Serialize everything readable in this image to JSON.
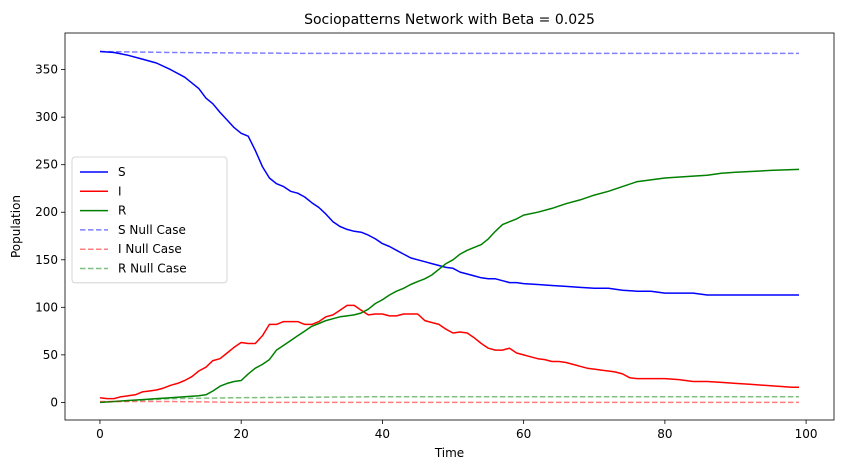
{
  "chart_data": {
    "type": "line",
    "title": "Sociopatterns Network with Beta = 0.025",
    "xlabel": "Time",
    "ylabel": "Population",
    "xlim": [
      -4.95,
      103.95
    ],
    "ylim": [
      -18.5,
      388.5
    ],
    "xticks": [
      0,
      20,
      40,
      60,
      80,
      100
    ],
    "yticks": [
      0,
      50,
      100,
      150,
      200,
      250,
      300,
      350
    ],
    "grid": false,
    "legend_position": "center-left",
    "series": [
      {
        "name": "S",
        "color": "#0000ff",
        "style": "solid",
        "x": [
          0,
          2,
          4,
          6,
          8,
          10,
          12,
          14,
          15,
          16,
          17,
          18,
          19,
          20,
          21,
          22,
          23,
          24,
          25,
          26,
          27,
          28,
          29,
          30,
          31,
          32,
          33,
          34,
          35,
          36,
          37,
          38,
          39,
          40,
          41,
          42,
          43,
          44,
          45,
          46,
          47,
          48,
          49,
          50,
          51,
          52,
          53,
          54,
          55,
          56,
          57,
          58,
          59,
          60,
          62,
          64,
          66,
          68,
          70,
          72,
          74,
          76,
          78,
          80,
          84,
          86,
          88,
          90,
          95,
          99
        ],
        "y": [
          369,
          368,
          365,
          361,
          357,
          350,
          342,
          330,
          320,
          314,
          305,
          297,
          289,
          283,
          280,
          265,
          248,
          236,
          230,
          227,
          222,
          220,
          216,
          210,
          205,
          198,
          190,
          185,
          182,
          180,
          179,
          176,
          172,
          167,
          164,
          160,
          156,
          152,
          150,
          148,
          146,
          144,
          142,
          141,
          137,
          135,
          133,
          131,
          130,
          130,
          128,
          126,
          126,
          125,
          124,
          123,
          122,
          121,
          120,
          120,
          118,
          117,
          117,
          115,
          115,
          113,
          113,
          113,
          113,
          113
        ]
      },
      {
        "name": "I",
        "color": "#ff0000",
        "style": "solid",
        "x": [
          0,
          1,
          2,
          3,
          4,
          5,
          6,
          7,
          8,
          9,
          10,
          11,
          12,
          13,
          14,
          15,
          16,
          17,
          18,
          19,
          20,
          21,
          22,
          23,
          24,
          25,
          26,
          27,
          28,
          29,
          30,
          31,
          32,
          33,
          34,
          35,
          36,
          37,
          38,
          39,
          40,
          41,
          42,
          43,
          44,
          45,
          46,
          47,
          48,
          49,
          50,
          51,
          52,
          53,
          54,
          55,
          56,
          57,
          58,
          59,
          60,
          61,
          62,
          63,
          64,
          65,
          66,
          67,
          68,
          69,
          70,
          71,
          72,
          73,
          74,
          75,
          76,
          77,
          78,
          79,
          80,
          82,
          84,
          85,
          86,
          88,
          90,
          92,
          94,
          96,
          98,
          99
        ],
        "y": [
          5,
          4,
          4,
          6,
          7,
          8,
          11,
          12,
          13,
          15,
          18,
          20,
          23,
          27,
          33,
          37,
          44,
          46,
          52,
          58,
          63,
          62,
          62,
          70,
          82,
          82,
          85,
          85,
          85,
          82,
          82,
          85,
          90,
          92,
          97,
          102,
          102,
          97,
          92,
          93,
          93,
          91,
          91,
          93,
          93,
          93,
          86,
          84,
          82,
          77,
          73,
          74,
          73,
          68,
          62,
          57,
          55,
          55,
          57,
          52,
          50,
          48,
          46,
          45,
          43,
          43,
          42,
          40,
          38,
          36,
          35,
          34,
          33,
          32,
          30,
          26,
          25,
          25,
          25,
          25,
          25,
          24,
          22,
          22,
          22,
          21,
          20,
          19,
          18,
          17,
          16,
          16
        ]
      },
      {
        "name": "R",
        "color": "#008000",
        "style": "solid",
        "x": [
          0,
          2,
          4,
          6,
          8,
          10,
          12,
          14,
          15,
          16,
          17,
          18,
          19,
          20,
          21,
          22,
          23,
          24,
          25,
          26,
          27,
          28,
          29,
          30,
          31,
          32,
          33,
          34,
          35,
          36,
          37,
          38,
          39,
          40,
          41,
          42,
          43,
          44,
          45,
          46,
          47,
          48,
          49,
          50,
          51,
          52,
          53,
          54,
          55,
          56,
          57,
          58,
          59,
          60,
          62,
          64,
          66,
          68,
          70,
          72,
          74,
          76,
          78,
          80,
          84,
          86,
          88,
          90,
          95,
          99
        ],
        "y": [
          0,
          1,
          2,
          3,
          4,
          5,
          6,
          7,
          8,
          12,
          17,
          20,
          22,
          23,
          30,
          36,
          40,
          45,
          55,
          60,
          65,
          70,
          75,
          80,
          83,
          86,
          88,
          90,
          91,
          92,
          94,
          98,
          104,
          108,
          113,
          117,
          120,
          124,
          127,
          130,
          134,
          140,
          146,
          150,
          156,
          160,
          163,
          166,
          172,
          180,
          187,
          190,
          193,
          197,
          200,
          204,
          209,
          213,
          218,
          222,
          227,
          232,
          234,
          236,
          238,
          239,
          241,
          242,
          244,
          245
        ]
      },
      {
        "name": "S Null Case",
        "color": "#0000ff",
        "style": "dashed",
        "opacity": 0.5,
        "x": [
          0,
          10,
          30,
          99
        ],
        "y": [
          369,
          368,
          367,
          367
        ]
      },
      {
        "name": "I Null Case",
        "color": "#ff0000",
        "style": "dashed",
        "opacity": 0.5,
        "x": [
          0,
          10,
          20,
          99
        ],
        "y": [
          1,
          1,
          0,
          0
        ]
      },
      {
        "name": "R Null Case",
        "color": "#008000",
        "style": "dashed",
        "opacity": 0.5,
        "x": [
          0,
          10,
          20,
          40,
          99
        ],
        "y": [
          0,
          4,
          5,
          6,
          6
        ]
      }
    ]
  }
}
